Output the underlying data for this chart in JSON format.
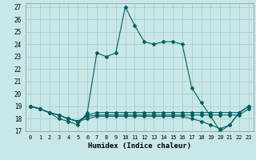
{
  "title": "",
  "xlabel": "Humidex (Indice chaleur)",
  "background_color": "#c8e8e8",
  "grid_color": "#a8c8c8",
  "line_color": "#006060",
  "xlim": [
    -0.5,
    23.5
  ],
  "ylim": [
    17,
    27.3
  ],
  "xticks": [
    0,
    1,
    2,
    3,
    4,
    5,
    6,
    7,
    8,
    9,
    10,
    11,
    12,
    13,
    14,
    15,
    16,
    17,
    18,
    19,
    20,
    21,
    22,
    23
  ],
  "yticks": [
    17,
    18,
    19,
    20,
    21,
    22,
    23,
    24,
    25,
    26,
    27
  ],
  "series": [
    [
      19.0,
      18.8,
      18.5,
      18.0,
      17.8,
      17.5,
      18.5,
      23.3,
      23.0,
      23.3,
      27.0,
      25.5,
      24.2,
      24.0,
      24.2,
      24.2,
      24.0,
      20.5,
      19.3,
      18.2,
      17.0,
      17.5,
      18.5,
      19.0
    ],
    [
      19.0,
      18.8,
      18.5,
      18.3,
      18.0,
      17.8,
      18.3,
      18.5,
      18.5,
      18.5,
      18.5,
      18.5,
      18.5,
      18.5,
      18.5,
      18.5,
      18.5,
      18.5,
      18.5,
      18.5,
      18.5,
      18.5,
      18.5,
      19.0
    ],
    [
      19.0,
      18.8,
      18.5,
      18.3,
      18.0,
      17.8,
      18.2,
      18.3,
      18.3,
      18.3,
      18.3,
      18.3,
      18.3,
      18.3,
      18.3,
      18.3,
      18.3,
      18.3,
      18.3,
      18.3,
      18.3,
      18.3,
      18.3,
      18.8
    ],
    [
      19.0,
      18.8,
      18.5,
      18.3,
      18.0,
      17.8,
      18.0,
      18.2,
      18.2,
      18.2,
      18.2,
      18.2,
      18.2,
      18.2,
      18.2,
      18.2,
      18.2,
      18.0,
      17.8,
      17.5,
      17.2,
      17.5,
      18.5,
      19.0
    ]
  ]
}
